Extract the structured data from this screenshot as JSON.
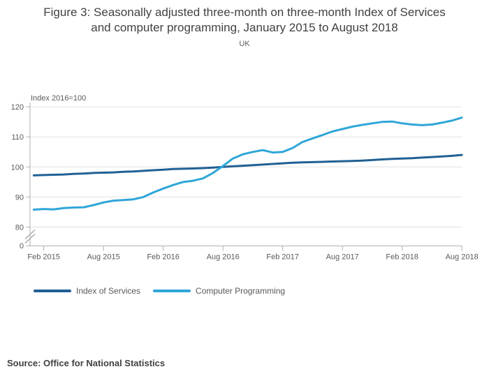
{
  "header": {
    "title": "Figure 3: Seasonally adjusted three-month on three-month Index of Services and computer programming, January 2015 to August 2018",
    "subtitle": "UK"
  },
  "footer": {
    "source": "Source: Office for National Statistics"
  },
  "chart_data": {
    "type": "line",
    "title": "Figure 3: Seasonally adjusted three-month on three-month Index of Services and computer programming, January 2015 to August 2018",
    "subtitle": "UK",
    "xlabel": "",
    "ylabel": "Index 2016=100",
    "grid": "horizontal-only",
    "legend_position": "bottom-left",
    "y_ticks": [
      80,
      90,
      100,
      110,
      120
    ],
    "y_axis_break_label": "0",
    "ylim_displayed": [
      77,
      121
    ],
    "grid_color": "#e2e2e2",
    "axis_color": "#b0b0b0",
    "categories": [
      "Jan 2015",
      "Feb 2015",
      "Mar 2015",
      "Apr 2015",
      "May 2015",
      "Jun 2015",
      "Jul 2015",
      "Aug 2015",
      "Sep 2015",
      "Oct 2015",
      "Nov 2015",
      "Dec 2015",
      "Jan 2016",
      "Feb 2016",
      "Mar 2016",
      "Apr 2016",
      "May 2016",
      "Jun 2016",
      "Jul 2016",
      "Aug 2016",
      "Sep 2016",
      "Oct 2016",
      "Nov 2016",
      "Dec 2016",
      "Jan 2017",
      "Feb 2017",
      "Mar 2017",
      "Apr 2017",
      "May 2017",
      "Jun 2017",
      "Jul 2017",
      "Aug 2017",
      "Sep 2017",
      "Oct 2017",
      "Nov 2017",
      "Dec 2017",
      "Jan 2018",
      "Feb 2018",
      "Mar 2018",
      "Apr 2018",
      "May 2018",
      "Jun 2018",
      "Jul 2018",
      "Aug 2018"
    ],
    "x_ticks": [
      {
        "label": "Feb 2015",
        "month_index": 1
      },
      {
        "label": "Aug 2015",
        "month_index": 7
      },
      {
        "label": "Feb 2016",
        "month_index": 13
      },
      {
        "label": "Aug 2016",
        "month_index": 19
      },
      {
        "label": "Feb 2017",
        "month_index": 25
      },
      {
        "label": "Aug 2017",
        "month_index": 31
      },
      {
        "label": "Feb 2018",
        "month_index": 37
      },
      {
        "label": "Aug 2018",
        "month_index": 43
      }
    ],
    "series": [
      {
        "name": "Index of Services",
        "color": "#206095",
        "values": [
          97.2,
          97.3,
          97.4,
          97.5,
          97.7,
          97.8,
          98.0,
          98.1,
          98.2,
          98.4,
          98.5,
          98.7,
          98.9,
          99.1,
          99.3,
          99.4,
          99.5,
          99.6,
          99.8,
          100.0,
          100.2,
          100.4,
          100.6,
          100.8,
          101.0,
          101.2,
          101.4,
          101.5,
          101.6,
          101.7,
          101.8,
          101.9,
          102.0,
          102.1,
          102.3,
          102.5,
          102.7,
          102.8,
          102.9,
          103.1,
          103.3,
          103.5,
          103.7,
          104.0
        ]
      },
      {
        "name": "Computer Programming",
        "color": "#2fa6d8",
        "values": [
          85.8,
          86.0,
          85.9,
          86.3,
          86.5,
          86.6,
          87.3,
          88.2,
          88.8,
          89.0,
          89.2,
          90.0,
          91.5,
          92.8,
          94.0,
          95.0,
          95.4,
          96.2,
          98.0,
          100.3,
          102.8,
          104.2,
          105.0,
          105.6,
          104.8,
          105.0,
          106.3,
          108.3,
          109.5,
          110.6,
          111.8,
          112.6,
          113.4,
          114.0,
          114.5,
          115.0,
          115.1,
          114.5,
          114.1,
          113.9,
          114.1,
          114.7,
          115.4,
          116.4
        ]
      }
    ]
  }
}
